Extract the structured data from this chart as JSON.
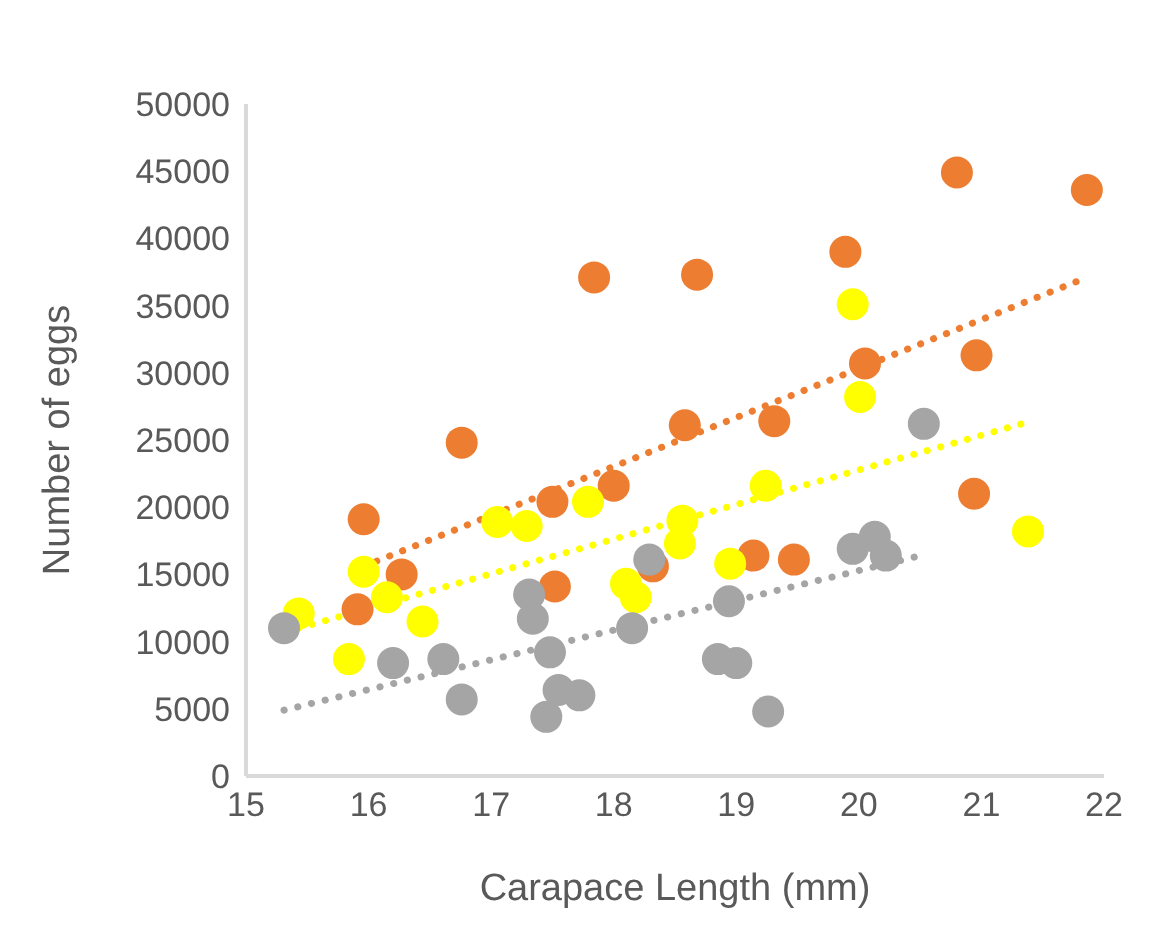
{
  "chart_data": {
    "type": "scatter",
    "xlabel": "Carapace Length (mm)",
    "ylabel": "Number of eggs",
    "xlim": [
      15,
      22
    ],
    "xticks": [
      15,
      16,
      17,
      18,
      19,
      20,
      21,
      22
    ],
    "ylim": [
      0,
      50000
    ],
    "yticks": [
      0,
      5000,
      10000,
      15000,
      20000,
      25000,
      30000,
      35000,
      40000,
      45000,
      50000
    ],
    "grid": false,
    "legend": false,
    "marker": "circle",
    "series": [
      {
        "color": "#ed7d31",
        "x": [
          15.96,
          15.91,
          16.27,
          16.76,
          17.5,
          17.52,
          17.84,
          18.0,
          18.32,
          18.68,
          18.58,
          19.14,
          19.47,
          19.31,
          19.89,
          20.05,
          20.96,
          20.94,
          20.8,
          21.86
        ],
        "values": [
          19100,
          12400,
          15000,
          24800,
          20400,
          14100,
          37100,
          21600,
          15600,
          37300,
          26100,
          16400,
          16100,
          26400,
          39000,
          30700,
          31300,
          21000,
          44900,
          43600
        ]
      },
      {
        "color": "#ffff00",
        "x": [
          15.43,
          15.84,
          15.96,
          16.15,
          16.44,
          17.05,
          17.29,
          17.79,
          18.1,
          18.18,
          18.56,
          18.54,
          18.95,
          19.24,
          21.38,
          19.95,
          20.01
        ],
        "values": [
          12100,
          8700,
          15200,
          13300,
          11500,
          18900,
          18600,
          20400,
          14300,
          13300,
          19000,
          17300,
          15800,
          21600,
          18200,
          35100,
          28200
        ]
      },
      {
        "color": "#a5a5a5",
        "x": [
          15.31,
          16.2,
          16.61,
          16.76,
          17.31,
          17.34,
          17.48,
          17.45,
          17.55,
          17.72,
          18.15,
          18.29,
          18.94,
          18.85,
          19.0,
          19.26,
          19.95,
          20.13,
          20.22,
          20.53
        ],
        "values": [
          11000,
          8400,
          8700,
          5700,
          13500,
          11700,
          9200,
          4400,
          6400,
          6000,
          11000,
          16100,
          13000,
          8700,
          8400,
          4800,
          16900,
          17800,
          16400,
          26200
        ]
      },
      {
        "type": "line",
        "color": "#a5a5a5",
        "line_style": "dotted",
        "marker": "none",
        "x": [
          15.31,
          20.46
        ],
        "values": [
          4900,
          16300
        ]
      },
      {
        "type": "line",
        "color": "#ffff00",
        "line_style": "dotted",
        "marker": "none",
        "x": [
          15.43,
          21.33
        ],
        "values": [
          11000,
          26200
        ]
      },
      {
        "type": "line",
        "color": "#ed7d31",
        "line_style": "dotted",
        "marker": "none",
        "x": [
          15.96,
          21.78
        ],
        "values": [
          15600,
          36800
        ]
      }
    ]
  }
}
